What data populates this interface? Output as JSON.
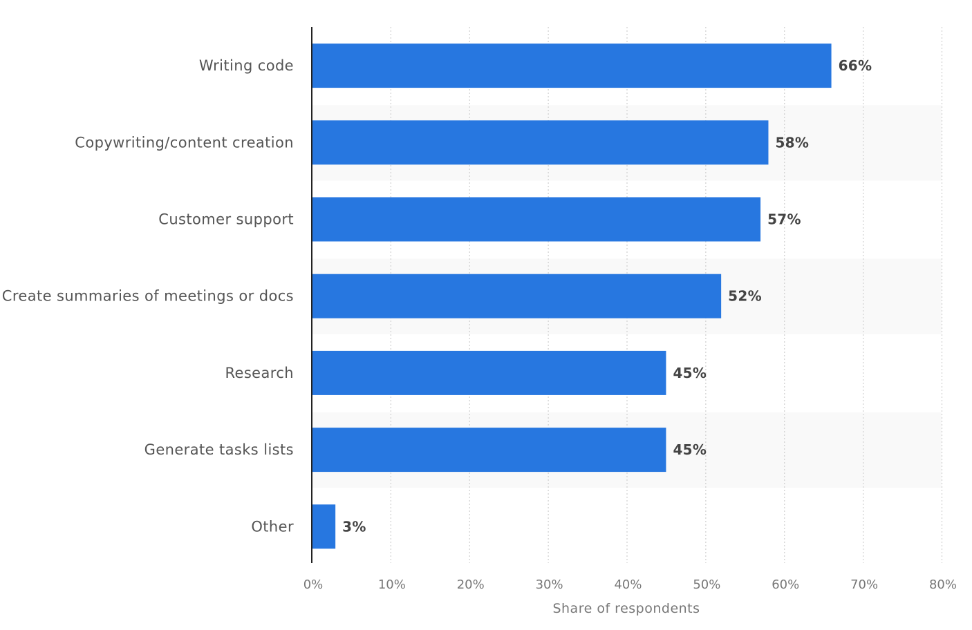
{
  "chart_data": {
    "type": "bar",
    "orientation": "horizontal",
    "title": "",
    "xlabel": "Share of respondents",
    "ylabel": "",
    "categories": [
      "Writing code",
      "Copywriting/content creation",
      "Customer support",
      "Create summaries of meetings or docs",
      "Research",
      "Generate tasks lists",
      "Other"
    ],
    "values": [
      66,
      58,
      57,
      52,
      45,
      45,
      3
    ],
    "value_labels": [
      "66%",
      "58%",
      "57%",
      "52%",
      "45%",
      "45%",
      "3%"
    ],
    "xlim": [
      0,
      80
    ],
    "ticks": [
      0,
      10,
      20,
      30,
      40,
      50,
      60,
      70,
      80
    ],
    "tick_labels": [
      "0%",
      "10%",
      "20%",
      "30%",
      "40%",
      "50%",
      "60%",
      "70%",
      "80%"
    ],
    "grid": true,
    "colors": {
      "bar": "#2777e0",
      "band": "#f9f9f9",
      "grid": "#cfcfcf",
      "axis": "#222222"
    }
  }
}
